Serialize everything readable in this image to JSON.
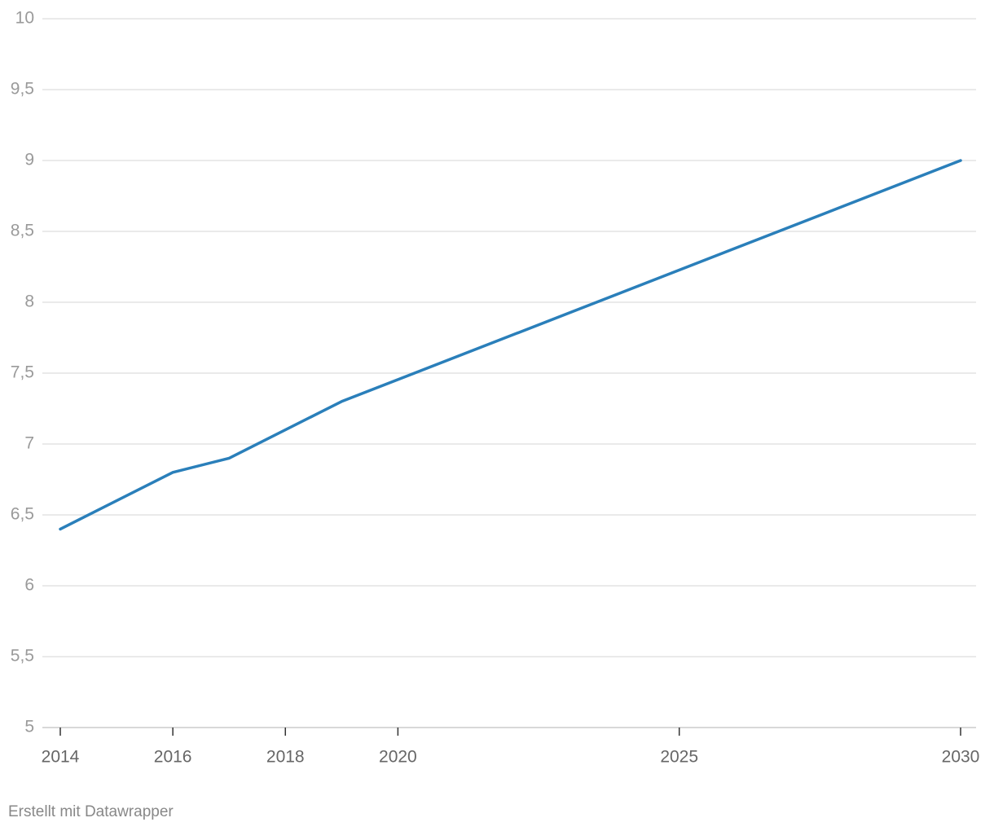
{
  "chart_data": {
    "type": "line",
    "x": [
      2014,
      2016,
      2017,
      2019,
      2030
    ],
    "values": [
      6.4,
      6.8,
      6.9,
      7.3,
      9.0
    ],
    "color": "#2a7fba",
    "xlim": [
      2014,
      2030
    ],
    "xticks": [
      2014,
      2016,
      2018,
      2020,
      2025,
      2030
    ],
    "ylim": [
      5,
      10
    ],
    "yticks": [
      5,
      {
        "value": 5.5,
        "label": "5,5"
      },
      6,
      {
        "value": 6.5,
        "label": "6,5"
      },
      7,
      {
        "value": 7.5,
        "label": "7,5"
      },
      8,
      {
        "value": 8.5,
        "label": "8,5"
      },
      9,
      {
        "value": 9.5,
        "label": "9,5"
      },
      10
    ],
    "grid": true,
    "footer": "Erstellt mit Datawrapper"
  }
}
